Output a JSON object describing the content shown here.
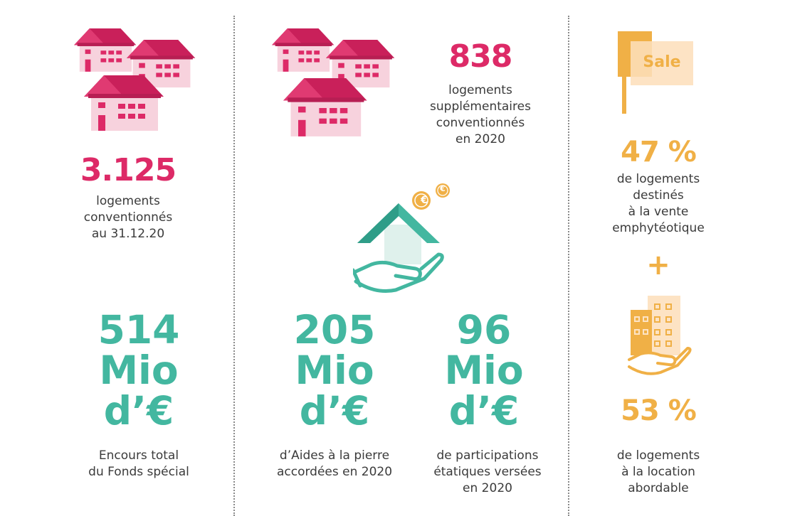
{
  "colors": {
    "pink": "#dd2a67",
    "teal": "#43b7a0",
    "gold": "#f0b046"
  },
  "col1": {
    "count": "3.125",
    "count_caption": [
      "logements",
      "conventionnés",
      "au 31.12.20"
    ],
    "fund_lines": [
      "514",
      "Mio",
      "d’€"
    ],
    "fund_caption": [
      "Encours total",
      "du Fonds spécial"
    ],
    "icon": "houses-icon"
  },
  "col2": {
    "count": "838",
    "count_caption": [
      "logements",
      "supplémentaires",
      "conventionnés",
      "en 2020"
    ],
    "aid_lines": [
      "205",
      "Mio",
      "d’€"
    ],
    "aid_caption": [
      "d’Aides à la pierre",
      "accordées en 2020"
    ],
    "part_lines": [
      "96",
      "Mio",
      "d’€"
    ],
    "part_caption": [
      "de participations",
      "étatiques versées",
      "en 2020"
    ],
    "icons": [
      "houses-icon",
      "hand-house-euro-icon"
    ],
    "coin_symbol": "€"
  },
  "col3": {
    "sign_text": "Sale",
    "sale_pct": "47 %",
    "sale_caption": [
      "de logements",
      "destinés",
      "à la vente",
      "emphytéotique"
    ],
    "plus": "+",
    "rent_pct": "53 %",
    "rent_caption": [
      "de logements",
      "à la location",
      "abordable"
    ],
    "icons": [
      "sale-sign-icon",
      "building-hand-icon"
    ]
  }
}
